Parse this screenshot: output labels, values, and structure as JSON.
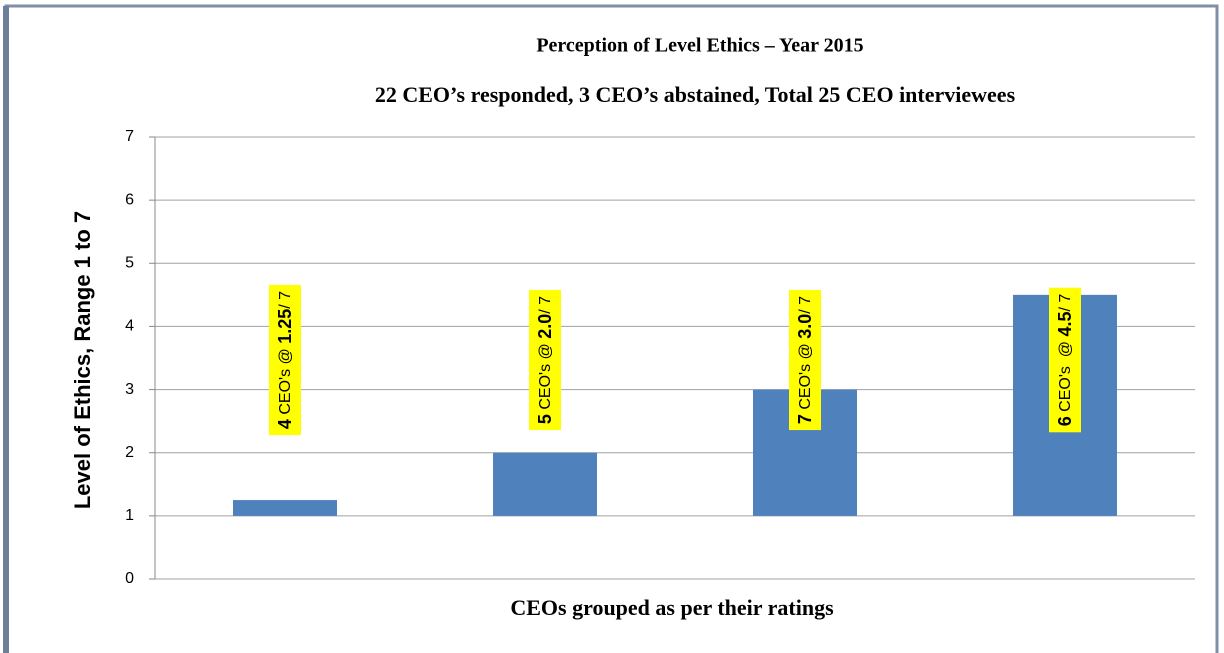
{
  "chart_data": {
    "type": "bar",
    "title": "Perception of Level Ethics – Year 2015",
    "subtitle": "22 CEO’s responded, 3 CEO’s abstained, Total 25 CEO interviewees",
    "xlabel": "CEOs grouped as per their ratings",
    "ylabel": "Level  of  Ethics,   Range 1 to 7",
    "categories": [
      null,
      null,
      null,
      null
    ],
    "values": [
      1.25,
      2,
      3,
      4.5
    ],
    "bar_base": 1,
    "color": "#4f81bd",
    "annotations": [
      [
        "4",
        " CEO's @ ",
        "1.25",
        "/ 7"
      ],
      [
        "5",
        " CEO's @ ",
        "2.0",
        "/ 7"
      ],
      [
        "7",
        " CEO's @ ",
        "3.0",
        "/ 7"
      ],
      [
        "6",
        " CEO's  @ ",
        "4.5",
        "/ 7"
      ]
    ],
    "annotation_color": "#ffff00",
    "ylim": [
      0,
      7
    ],
    "yticks": [
      0,
      1,
      2,
      3,
      4,
      5,
      6,
      7
    ],
    "grid": true
  }
}
